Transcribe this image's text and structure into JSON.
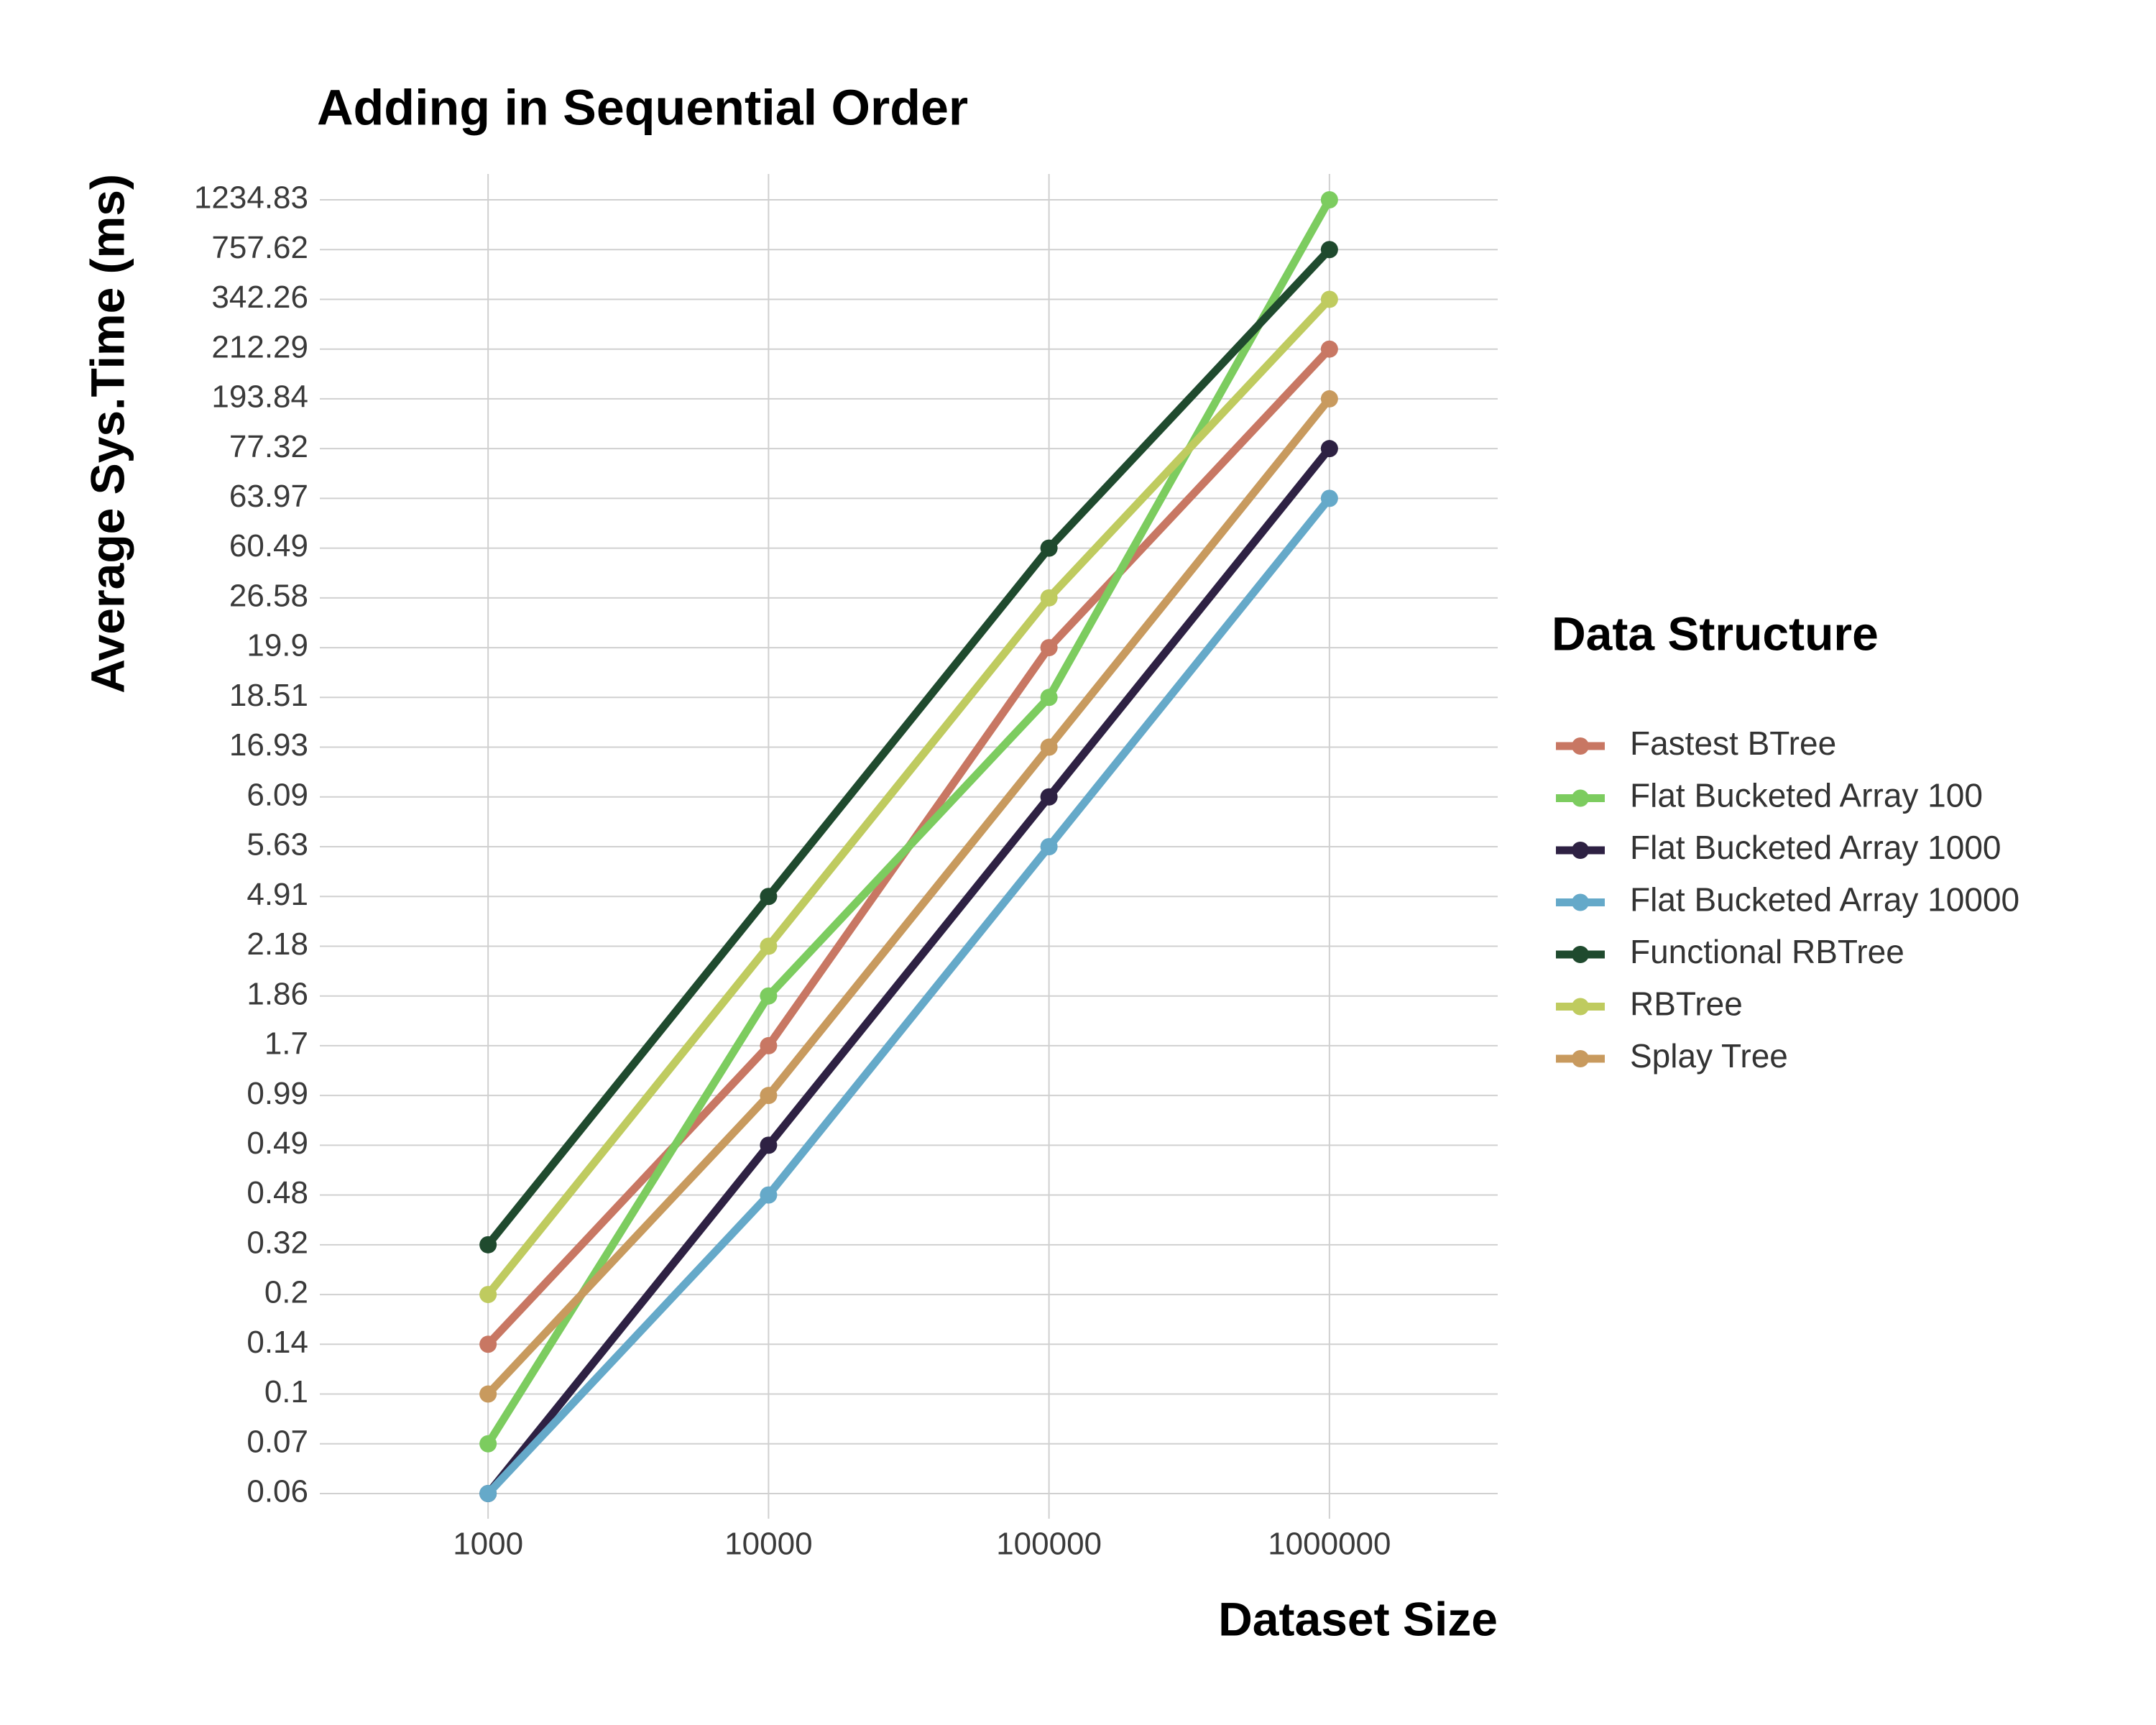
{
  "chart_data": {
    "type": "line",
    "title": "Adding in Sequential Order",
    "x_label": "Dataset Size",
    "y_label": "Average Sys.Time (ms)",
    "categories": [
      "1000",
      "10000",
      "100000",
      "1000000"
    ],
    "y_scale": "discrete",
    "yticks": [
      0.06,
      0.07,
      0.1,
      0.14,
      0.2,
      0.32,
      0.48,
      0.49,
      0.99,
      1.7,
      1.86,
      2.18,
      4.91,
      5.63,
      6.09,
      16.93,
      18.51,
      19.9,
      26.58,
      60.49,
      63.97,
      77.32,
      193.84,
      212.29,
      342.26,
      757.62,
      1234.83
    ],
    "grid": true,
    "legend_title": "Data Structure",
    "legend_position": "right",
    "series": [
      {
        "name": "Fastest BTree",
        "color": "#c87763",
        "values": [
          0.14,
          1.7,
          19.9,
          212.29
        ]
      },
      {
        "name": "Flat Bucketed Array 100",
        "color": "#7ccc5f",
        "values": [
          0.07,
          1.86,
          18.51,
          1234.83
        ]
      },
      {
        "name": "Flat Bucketed Array 1000",
        "color": "#2e2143",
        "values": [
          0.06,
          0.49,
          6.09,
          77.32
        ]
      },
      {
        "name": "Flat Bucketed Array 10000",
        "color": "#65a9c9",
        "values": [
          0.06,
          0.48,
          5.63,
          63.97
        ]
      },
      {
        "name": "Functional RBTree",
        "color": "#1f4a2e",
        "values": [
          0.32,
          4.91,
          60.49,
          757.62
        ]
      },
      {
        "name": "RBTree",
        "color": "#bfcb5f",
        "values": [
          0.2,
          2.18,
          26.58,
          342.26
        ]
      },
      {
        "name": "Splay Tree",
        "color": "#c89a5e",
        "values": [
          0.1,
          0.99,
          16.93,
          193.84
        ]
      }
    ]
  }
}
